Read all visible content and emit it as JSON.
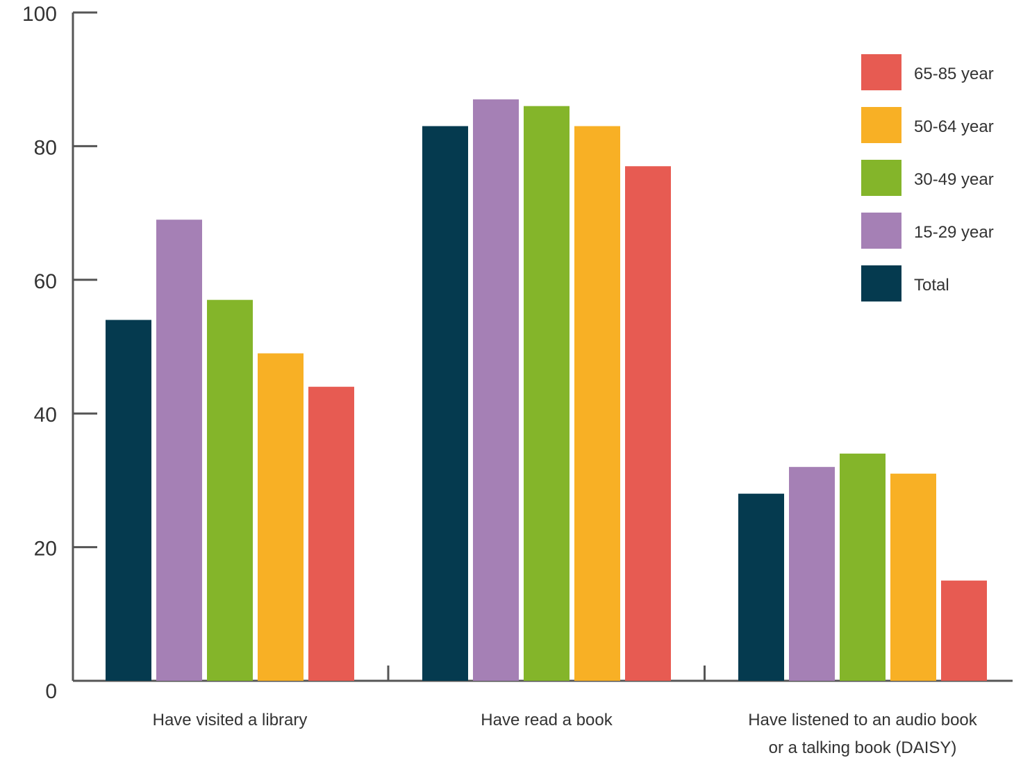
{
  "chart_data": {
    "type": "bar",
    "title": "",
    "xlabel": "",
    "ylabel": "",
    "ylim": [
      0,
      100
    ],
    "yticks": [
      0,
      20,
      40,
      60,
      80,
      100
    ],
    "categories": [
      [
        "Have visited a library"
      ],
      [
        "Have read a book"
      ],
      [
        "Have listened to an audio book",
        "or a talking book (DAISY)"
      ]
    ],
    "series": [
      {
        "name": "Total",
        "color": "#053a4f",
        "values": [
          54,
          83,
          28
        ]
      },
      {
        "name": "15-29 year",
        "color": "#a580b5",
        "values": [
          69,
          87,
          32
        ]
      },
      {
        "name": "30-49 year",
        "color": "#84b52a",
        "values": [
          57,
          86,
          34
        ]
      },
      {
        "name": "50-64 year",
        "color": "#f8b025",
        "values": [
          49,
          83,
          31
        ]
      },
      {
        "name": "65-85 year",
        "color": "#e75b52",
        "values": [
          44,
          77,
          15
        ]
      }
    ],
    "legend": {
      "position": "top-right",
      "order": [
        "65-85 year",
        "50-64 year",
        "30-49 year",
        "15-29 year",
        "Total"
      ]
    },
    "grid": false
  }
}
